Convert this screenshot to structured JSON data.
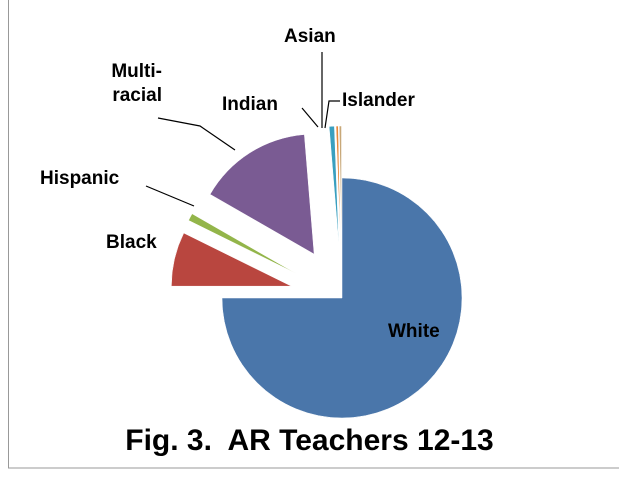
{
  "chart_data": {
    "type": "pie",
    "title": "Fig. 3.  AR Teachers 12-13",
    "categories": [
      "White",
      "Black",
      "Hispanic",
      "Multi-racial",
      "Indian",
      "Asian",
      "Islander"
    ],
    "values": [
      75,
      7.3,
      1,
      15.4,
      0.7,
      0.3,
      0.3
    ],
    "colors": [
      "#4a76aa",
      "#b9463f",
      "#93b54a",
      "#7a5b93",
      "#3a9fbf",
      "#e8883a",
      "#c8a878"
    ]
  }
}
